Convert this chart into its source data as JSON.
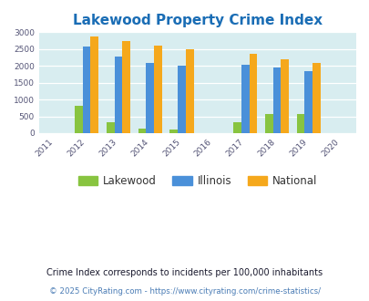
{
  "title": "Lakewood Property Crime Index",
  "title_color": "#1a6db5",
  "background_color": "#ffffff",
  "plot_bg_color": "#d8edf0",
  "years": [
    2011,
    2012,
    2013,
    2014,
    2015,
    2016,
    2017,
    2018,
    2019,
    2020
  ],
  "data_years": [
    2012,
    2013,
    2014,
    2015,
    2017,
    2018,
    2019
  ],
  "lakewood": [
    800,
    320,
    140,
    100,
    330,
    555,
    555
  ],
  "illinois": [
    2580,
    2270,
    2080,
    2000,
    2020,
    1940,
    1850
  ],
  "national": [
    2860,
    2740,
    2600,
    2500,
    2360,
    2190,
    2090
  ],
  "lakewood_color": "#88c440",
  "illinois_color": "#4a90d9",
  "national_color": "#f5a81c",
  "ylim": [
    0,
    3000
  ],
  "yticks": [
    0,
    500,
    1000,
    1500,
    2000,
    2500,
    3000
  ],
  "legend_labels": [
    "Lakewood",
    "Illinois",
    "National"
  ],
  "footnote1": "Crime Index corresponds to incidents per 100,000 inhabitants",
  "footnote2": "© 2025 CityRating.com - https://www.cityrating.com/crime-statistics/",
  "footnote1_color": "#1a1a2e",
  "footnote2_color": "#4a7cb5",
  "bar_width": 0.25,
  "title_fontsize": 11
}
